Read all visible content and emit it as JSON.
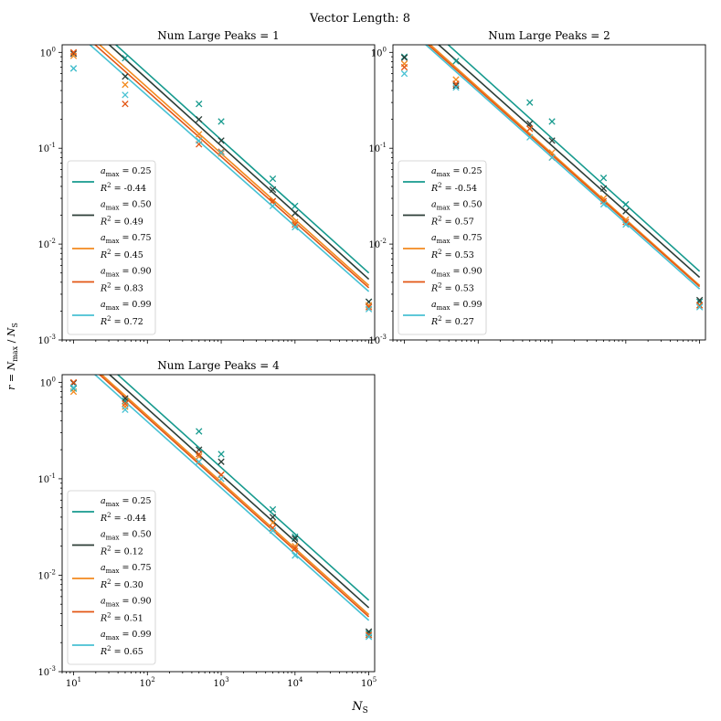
{
  "chart_data": {
    "type": "scatter",
    "suptitle": "Vector Length: 8",
    "xlabel": "N_S",
    "ylabel": "r = N_max / N_S",
    "xscale": "log",
    "yscale": "log",
    "xlim": [
      7,
      120000
    ],
    "ylim": [
      0.001,
      1.2
    ],
    "x_ticks": [
      10,
      100,
      1000,
      10000,
      100000
    ],
    "x_tick_labels": [
      "10^1",
      "10^2",
      "10^3",
      "10^4",
      "10^5"
    ],
    "y_ticks": [
      0.001,
      0.01,
      0.1,
      1
    ],
    "y_tick_labels": [
      "10^-3",
      "10^-2",
      "10^-1",
      "10^0"
    ],
    "x": [
      10,
      50,
      500,
      1000,
      5000,
      10000,
      100000
    ],
    "series_styles": [
      {
        "amax": "0.25",
        "color": "#169a8e"
      },
      {
        "amax": "0.50",
        "color": "#2b3d36"
      },
      {
        "amax": "0.75",
        "color": "#f28a1e"
      },
      {
        "amax": "0.90",
        "color": "#e35614"
      },
      {
        "amax": "0.99",
        "color": "#47c1d3"
      }
    ],
    "panels": [
      {
        "title": "Num Large Peaks = 1",
        "series": [
          {
            "amax": "0.25",
            "r2": "-0.44",
            "values": [
              0.68,
              0.87,
              0.29,
              0.19,
              0.048,
              0.025,
              0.0025
            ],
            "fit": [
              3.0,
              0.005
            ]
          },
          {
            "amax": "0.50",
            "r2": "0.49",
            "values": [
              0.97,
              0.56,
              0.2,
              0.12,
              0.037,
              0.021,
              0.0025
            ],
            "fit": [
              2.6,
              0.0043
            ]
          },
          {
            "amax": "0.75",
            "r2": "0.45",
            "values": [
              0.92,
              0.46,
              0.14,
              0.088,
              0.028,
              0.017,
              0.0023
            ],
            "fit": [
              2.1,
              0.0037
            ]
          },
          {
            "amax": "0.90",
            "r2": "0.83",
            "values": [
              1.0,
              0.29,
              0.11,
              0.092,
              0.028,
              0.016,
              0.0022
            ],
            "fit": [
              1.9,
              0.0035
            ]
          },
          {
            "amax": "0.99",
            "r2": "0.72",
            "values": [
              0.68,
              0.36,
              0.12,
              0.09,
              0.025,
              0.015,
              0.0021
            ],
            "fit": [
              1.7,
              0.0032
            ]
          }
        ]
      },
      {
        "title": "Num Large Peaks = 2",
        "series": [
          {
            "amax": "0.25",
            "r2": "-0.54",
            "values": [
              0.9,
              0.81,
              0.3,
              0.19,
              0.049,
              0.026,
              0.0025
            ],
            "fit": [
              3.1,
              0.0052
            ]
          },
          {
            "amax": "0.50",
            "r2": "0.57",
            "values": [
              0.88,
              0.45,
              0.18,
              0.12,
              0.038,
              0.022,
              0.0026
            ],
            "fit": [
              2.5,
              0.0045
            ]
          },
          {
            "amax": "0.75",
            "r2": "0.53",
            "values": [
              0.76,
              0.52,
              0.16,
              0.09,
              0.03,
              0.018,
              0.0023
            ],
            "fit": [
              2.1,
              0.0037
            ]
          },
          {
            "amax": "0.90",
            "r2": "0.53",
            "values": [
              0.7,
              0.47,
              0.16,
              0.08,
              0.028,
              0.017,
              0.0023
            ],
            "fit": [
              2.0,
              0.0036
            ]
          },
          {
            "amax": "0.99",
            "r2": "0.27",
            "values": [
              0.6,
              0.43,
              0.13,
              0.08,
              0.026,
              0.016,
              0.0022
            ],
            "fit": [
              1.9,
              0.0034
            ]
          }
        ]
      },
      {
        "title": "Num Large Peaks = 4",
        "series": [
          {
            "amax": "0.25",
            "r2": "-0.44",
            "values": [
              0.86,
              0.64,
              0.31,
              0.18,
              0.048,
              0.025,
              0.0025
            ],
            "fit": [
              3.1,
              0.0055
            ]
          },
          {
            "amax": "0.50",
            "r2": "0.12",
            "values": [
              0.98,
              0.68,
              0.2,
              0.15,
              0.04,
              0.024,
              0.0026
            ],
            "fit": [
              2.6,
              0.0046
            ]
          },
          {
            "amax": "0.75",
            "r2": "0.30",
            "values": [
              0.8,
              0.56,
              0.17,
              0.11,
              0.035,
              0.02,
              0.0024
            ],
            "fit": [
              2.2,
              0.0039
            ]
          },
          {
            "amax": "0.90",
            "r2": "0.51",
            "values": [
              1.0,
              0.6,
              0.18,
              0.11,
              0.031,
              0.019,
              0.0024
            ],
            "fit": [
              2.1,
              0.0037
            ]
          },
          {
            "amax": "0.99",
            "r2": "0.65",
            "values": [
              0.88,
              0.52,
              0.15,
              0.1,
              0.029,
              0.016,
              0.0023
            ],
            "fit": [
              1.9,
              0.0034
            ]
          }
        ]
      }
    ]
  }
}
